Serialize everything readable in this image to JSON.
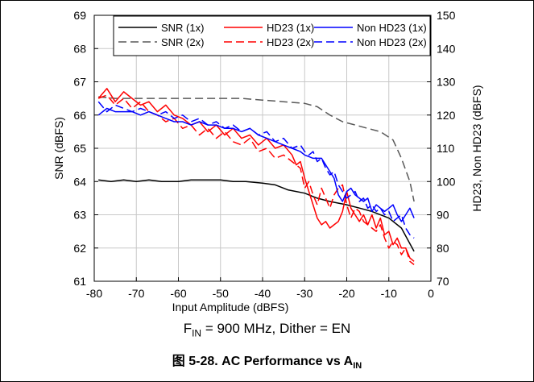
{
  "figure": {
    "condition": {
      "f_main": "F",
      "f_sub": "IN",
      "rest": " = 900 MHz, Dither = EN"
    },
    "caption": {
      "prefix": "图 5-28. AC Performance vs A",
      "sub": "IN"
    }
  },
  "colors": {
    "snr": "#000000",
    "snr2x": "#595959",
    "hd23": "#ff0000",
    "nonhd23": "#0000ff",
    "grid": "#c8c8c8"
  },
  "chart_data": {
    "type": "line",
    "xlabel": "Input Amplitude (dBFS)",
    "ylabel": "SNR (dBFS)",
    "y2label": "HD23, Non HD23 (dBFS)",
    "xlim": [
      -80,
      0
    ],
    "ylim": [
      61,
      69
    ],
    "y2lim": [
      70,
      150
    ],
    "xticks": [
      "-80",
      "-70",
      "-60",
      "-50",
      "-40",
      "-30",
      "-20",
      "-10",
      "0"
    ],
    "yticks": [
      "61",
      "62",
      "63",
      "64",
      "65",
      "66",
      "67",
      "68",
      "69"
    ],
    "y2ticks": [
      "70",
      "80",
      "90",
      "100",
      "110",
      "120",
      "130",
      "140",
      "150"
    ],
    "legend_position": "top-right",
    "grid": true,
    "series": [
      {
        "name": "SNR (1x)",
        "axis": "left",
        "style": "solid",
        "color": "#000000",
        "x": [
          -79,
          -76,
          -73,
          -70,
          -67,
          -64,
          -60,
          -57,
          -54,
          -50,
          -47,
          -44,
          -40,
          -37,
          -34,
          -30,
          -27,
          -24,
          -20,
          -17,
          -14,
          -10,
          -7,
          -4
        ],
        "y": [
          64.05,
          64.0,
          64.05,
          64.0,
          64.05,
          64.0,
          64.0,
          64.05,
          64.05,
          64.05,
          64.0,
          64.0,
          63.95,
          63.9,
          63.75,
          63.65,
          63.5,
          63.4,
          63.3,
          63.2,
          63.1,
          62.9,
          62.6,
          61.9
        ]
      },
      {
        "name": "SNR (2x)",
        "axis": "left",
        "style": "dashed",
        "color": "#595959",
        "x": [
          -79,
          -75,
          -70,
          -65,
          -60,
          -55,
          -50,
          -45,
          -40,
          -35,
          -30,
          -27,
          -24,
          -21,
          -18,
          -15,
          -12,
          -9,
          -7,
          -5,
          -4
        ],
        "y": [
          66.55,
          66.5,
          66.5,
          66.5,
          66.5,
          66.5,
          66.5,
          66.5,
          66.45,
          66.4,
          66.35,
          66.25,
          66.0,
          65.8,
          65.7,
          65.6,
          65.5,
          65.25,
          64.7,
          64.0,
          63.4
        ]
      },
      {
        "name": "HD23 (1x)",
        "axis": "right",
        "style": "solid",
        "color": "#ff0000",
        "x": [
          -79,
          -77,
          -75,
          -73,
          -71,
          -69,
          -67,
          -65,
          -63,
          -61,
          -59,
          -57,
          -55,
          -53,
          -51,
          -49,
          -47,
          -45,
          -43,
          -41,
          -39,
          -37,
          -35,
          -33,
          -32,
          -31,
          -30,
          -29,
          -28,
          -27,
          -26,
          -25,
          -24,
          -23,
          -22,
          -21,
          -20,
          -19,
          -18,
          -17,
          -16,
          -15,
          -14,
          -13,
          -12,
          -11,
          -10,
          -9,
          -8,
          -7,
          -6,
          -5,
          -4
        ],
        "y": [
          125,
          128,
          124,
          127,
          125,
          123,
          124,
          121,
          123,
          120,
          119,
          117,
          118,
          115,
          117,
          114,
          116,
          113,
          114,
          111,
          113,
          110,
          111,
          108,
          105,
          106,
          101,
          97,
          93,
          89,
          87,
          88,
          86,
          87,
          88,
          91,
          97,
          92,
          90,
          88,
          90,
          87,
          90,
          86,
          89,
          84,
          85,
          81,
          83,
          80,
          80,
          77,
          76
        ]
      },
      {
        "name": "HD23 (2x)",
        "axis": "right",
        "style": "dashed",
        "color": "#ff0000",
        "x": [
          -79,
          -77,
          -75,
          -73,
          -71,
          -69,
          -67,
          -65,
          -63,
          -61,
          -59,
          -57,
          -55,
          -53,
          -51,
          -49,
          -47,
          -45,
          -43,
          -41,
          -39,
          -37,
          -35,
          -33,
          -31,
          -30,
          -29,
          -28,
          -27,
          -26,
          -25,
          -24,
          -23,
          -22,
          -21,
          -20,
          -19,
          -18,
          -17,
          -16,
          -15,
          -14,
          -13,
          -12,
          -11,
          -10,
          -9,
          -8,
          -7,
          -6,
          -5,
          -4
        ],
        "y": [
          125,
          126,
          123,
          125,
          122,
          124,
          121,
          120,
          118,
          119,
          116,
          117,
          114,
          116,
          113,
          115,
          112,
          111,
          113,
          109,
          110,
          107,
          108,
          106,
          104,
          98,
          100,
          96,
          93,
          98,
          95,
          92,
          96,
          98,
          99,
          93,
          89,
          92,
          91,
          88,
          87,
          86,
          85,
          87,
          83,
          80,
          82,
          81,
          78,
          80,
          76,
          75
        ]
      },
      {
        "name": "Non HD23 (1x)",
        "axis": "right",
        "style": "solid",
        "color": "#0000ff",
        "x": [
          -79,
          -77,
          -75,
          -73,
          -71,
          -69,
          -67,
          -65,
          -63,
          -61,
          -59,
          -57,
          -55,
          -53,
          -51,
          -49,
          -47,
          -45,
          -43,
          -41,
          -39,
          -37,
          -35,
          -33,
          -31,
          -30,
          -28,
          -26,
          -25,
          -24,
          -23,
          -22,
          -21,
          -20,
          -19,
          -18,
          -17,
          -16,
          -15,
          -14,
          -13,
          -12,
          -11,
          -10,
          -9,
          -8,
          -7,
          -6,
          -5,
          -4
        ],
        "y": [
          120,
          122,
          121,
          121,
          121,
          120,
          121,
          120,
          119,
          118,
          118,
          117,
          118,
          117,
          117,
          116,
          116,
          115,
          116,
          114,
          113,
          112,
          111,
          110,
          109,
          108,
          107,
          107,
          105,
          103,
          101,
          96,
          94,
          97,
          98,
          96,
          95,
          94,
          95,
          91,
          93,
          92,
          91,
          92,
          93,
          90,
          88,
          90,
          92,
          89
        ]
      },
      {
        "name": "Non HD23 (2x)",
        "axis": "right",
        "style": "dashed",
        "color": "#0000ff",
        "x": [
          -79,
          -77,
          -75,
          -73,
          -71,
          -69,
          -67,
          -65,
          -63,
          -61,
          -59,
          -57,
          -55,
          -53,
          -51,
          -49,
          -47,
          -45,
          -43,
          -41,
          -39,
          -37,
          -35,
          -33,
          -31,
          -30,
          -29,
          -28,
          -27,
          -26,
          -25,
          -24,
          -23,
          -22,
          -21,
          -20,
          -19,
          -18,
          -17,
          -16,
          -15,
          -14,
          -13,
          -12,
          -11,
          -10,
          -9,
          -8,
          -7,
          -6,
          -5,
          -4
        ],
        "y": [
          124,
          121,
          123,
          122,
          121,
          122,
          121,
          120,
          121,
          119,
          120,
          118,
          119,
          117,
          118,
          116,
          117,
          115,
          116,
          114,
          115,
          112,
          113,
          110,
          111,
          109,
          108,
          109,
          106,
          107,
          104,
          102,
          103,
          99,
          97,
          95,
          96,
          97,
          94,
          95,
          92,
          93,
          91,
          92,
          90,
          91,
          88,
          89,
          90,
          86,
          84,
          83
        ]
      }
    ]
  }
}
